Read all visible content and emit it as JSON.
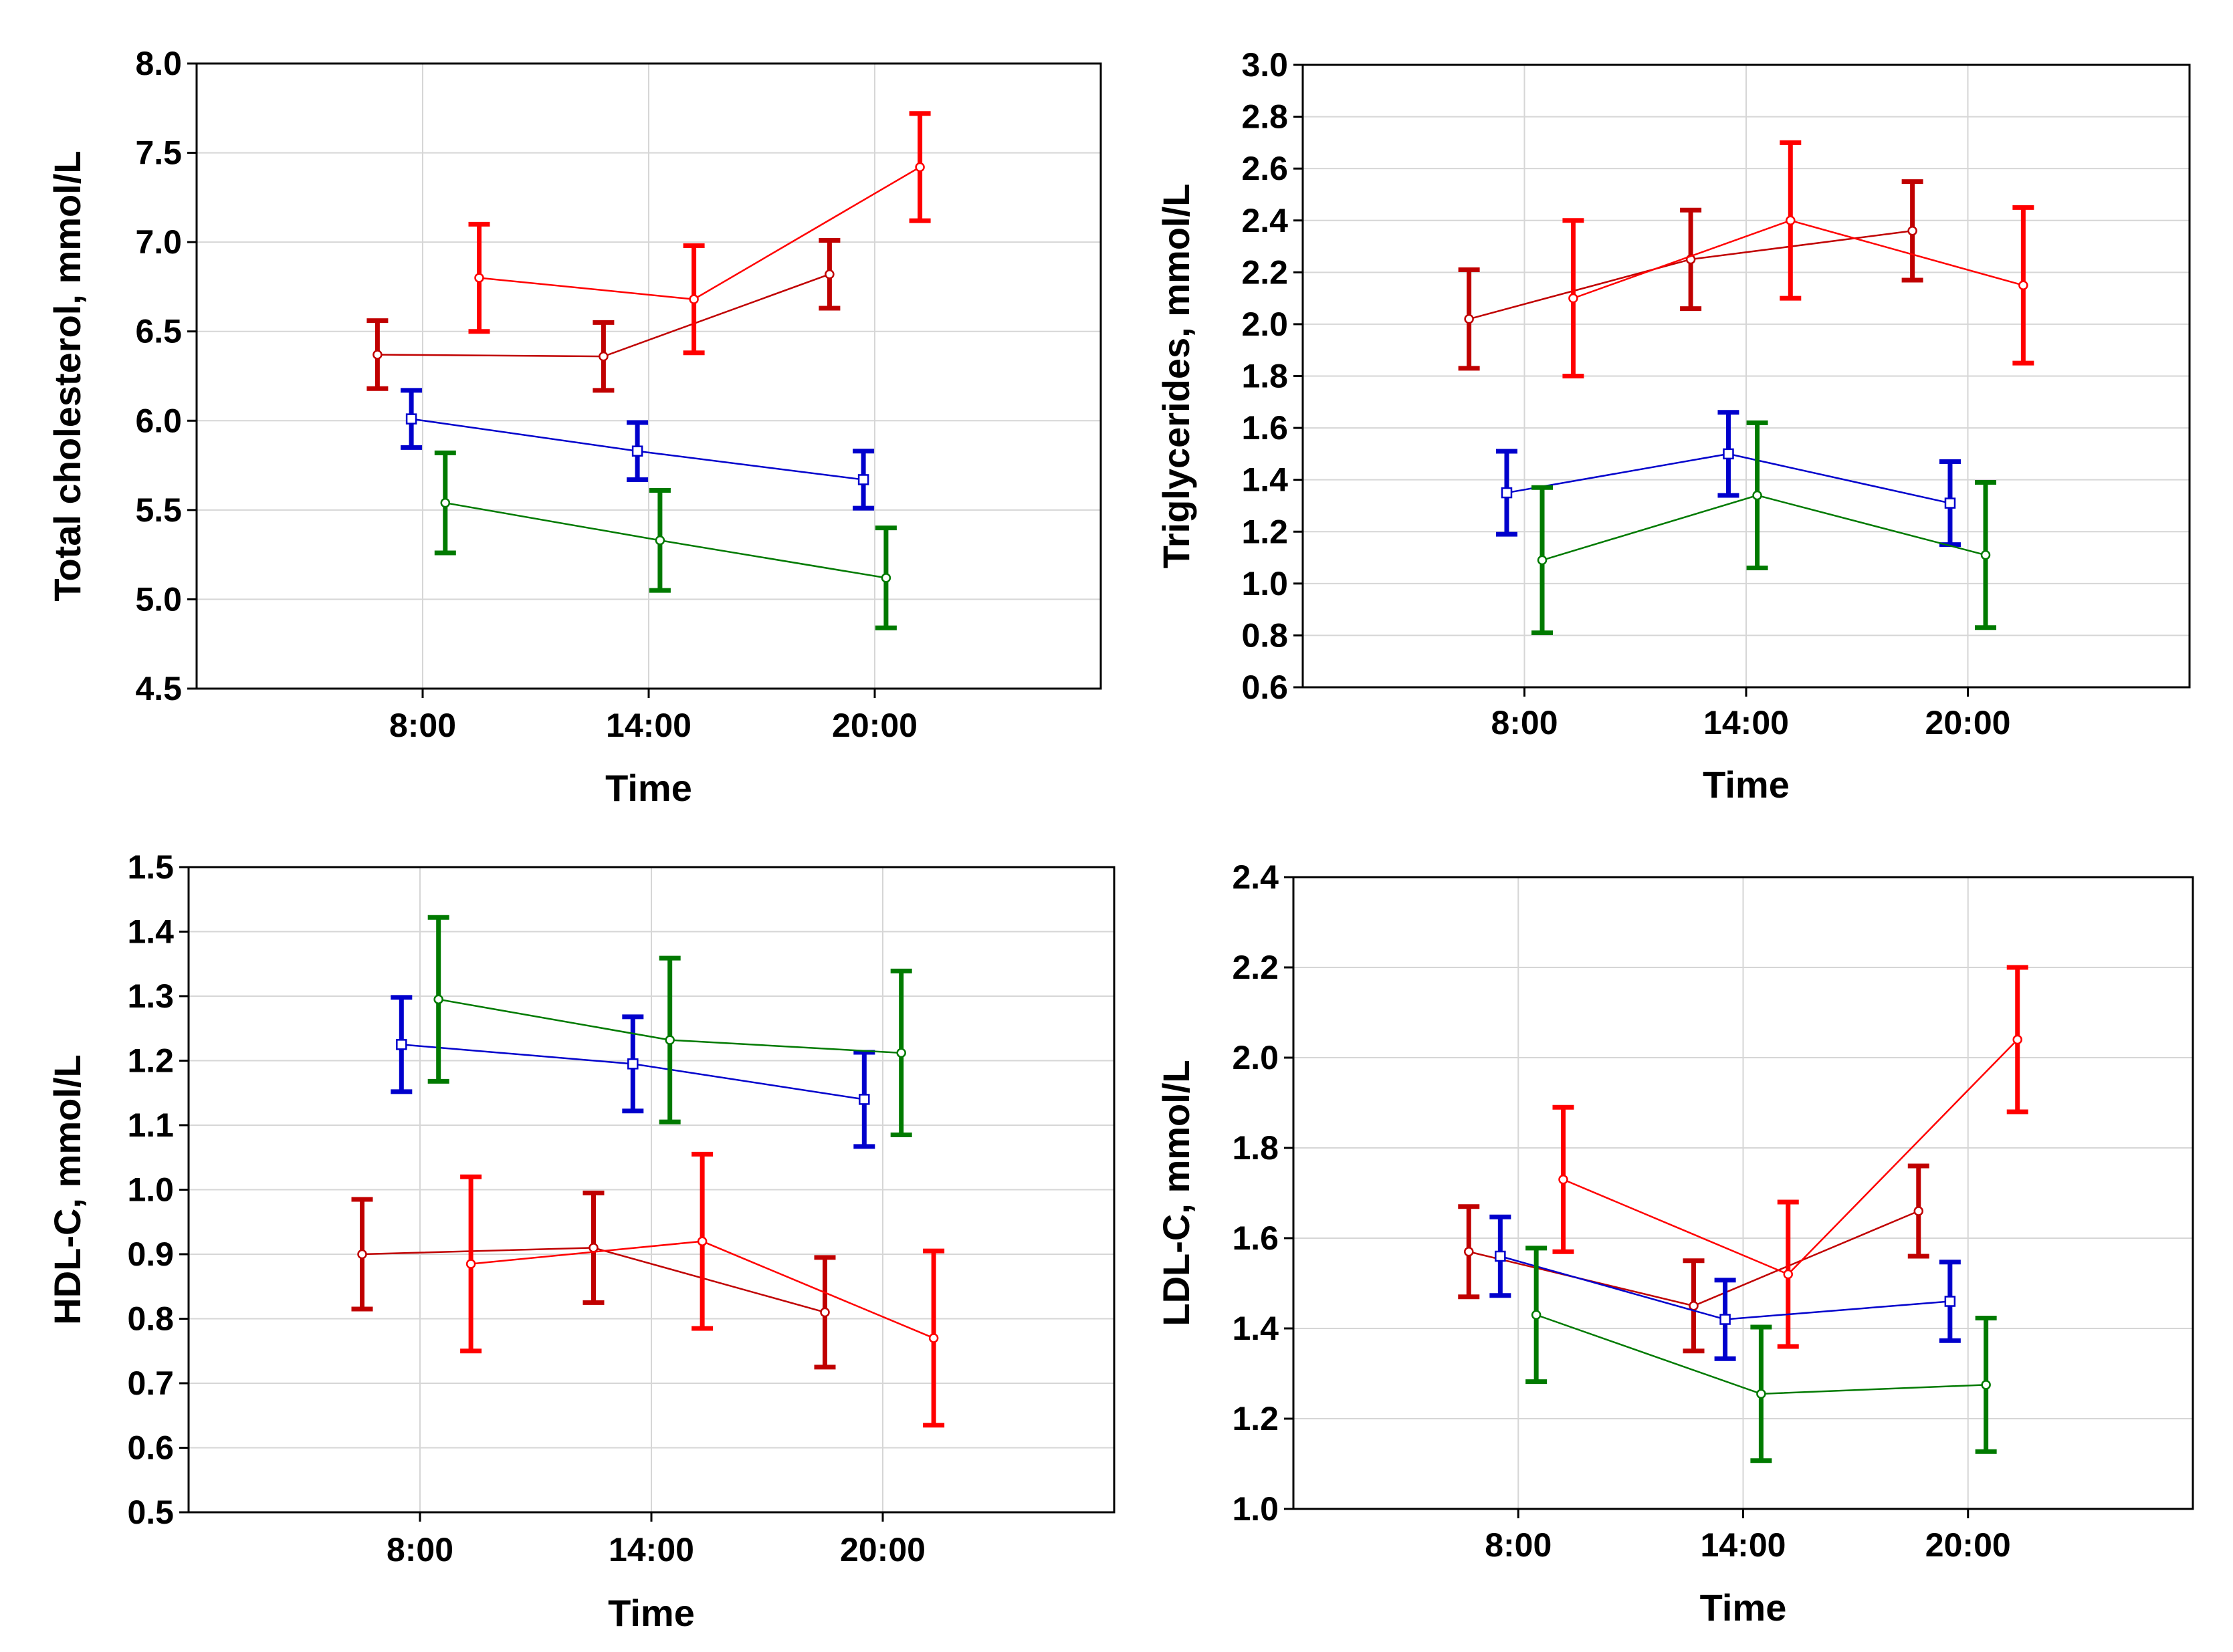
{
  "chart_data": [
    {
      "type": "line",
      "id": "total-cholesterol",
      "title": "",
      "xlabel": "Time",
      "ylabel": "Total cholesterol, mmol/L",
      "categories": [
        "8:00",
        "14:00",
        "20:00"
      ],
      "ylim": [
        4.5,
        8.0
      ],
      "yticks": [
        "4.5",
        "5.0",
        "5.5",
        "6.0",
        "6.5",
        "7.0",
        "7.5",
        "8.0"
      ],
      "grid": true,
      "series": [
        {
          "name": "series-darkred",
          "color": "#c00000",
          "marker": "circle",
          "x": [
            -0.2,
            0.8,
            1.8
          ],
          "values": [
            6.37,
            6.36,
            6.82
          ],
          "errors": [
            0.19,
            0.19,
            0.19
          ]
        },
        {
          "name": "series-red",
          "color": "#ff0000",
          "marker": "circle",
          "x": [
            0.25,
            1.2,
            2.2
          ],
          "values": [
            6.8,
            6.68,
            7.42
          ],
          "errors": [
            0.3,
            0.3,
            0.3
          ]
        },
        {
          "name": "series-blue",
          "color": "#0000cc",
          "marker": "square",
          "x": [
            -0.05,
            0.95,
            1.95
          ],
          "values": [
            6.01,
            5.83,
            5.67
          ],
          "errors": [
            0.16,
            0.16,
            0.16
          ]
        },
        {
          "name": "series-green",
          "color": "#007a00",
          "marker": "circle",
          "x": [
            0.1,
            1.05,
            2.05
          ],
          "values": [
            5.54,
            5.33,
            5.12
          ],
          "errors": [
            0.28,
            0.28,
            0.28
          ]
        }
      ]
    },
    {
      "type": "line",
      "id": "triglycerides",
      "title": "",
      "xlabel": "Time",
      "ylabel": "Triglycerides, mmol/L",
      "categories": [
        "8:00",
        "14:00",
        "20:00"
      ],
      "ylim": [
        0.6,
        3.0
      ],
      "yticks": [
        "0.6",
        "0.8",
        "1.0",
        "1.2",
        "1.4",
        "1.6",
        "1.8",
        "2.0",
        "2.2",
        "2.4",
        "2.6",
        "2.8",
        "3.0"
      ],
      "grid": true,
      "series": [
        {
          "name": "series-darkred",
          "color": "#c00000",
          "marker": "circle",
          "x": [
            -0.25,
            0.75,
            1.75
          ],
          "values": [
            2.02,
            2.25,
            2.36
          ],
          "errors": [
            0.19,
            0.19,
            0.19
          ]
        },
        {
          "name": "series-red",
          "color": "#ff0000",
          "marker": "circle",
          "x": [
            0.22,
            1.2,
            2.25
          ],
          "values": [
            2.1,
            2.4,
            2.15
          ],
          "errors": [
            0.3,
            0.3,
            0.3
          ]
        },
        {
          "name": "series-blue",
          "color": "#0000cc",
          "marker": "square",
          "x": [
            -0.08,
            0.92,
            1.92
          ],
          "values": [
            1.35,
            1.5,
            1.31
          ],
          "errors": [
            0.16,
            0.16,
            0.16
          ]
        },
        {
          "name": "series-green",
          "color": "#007a00",
          "marker": "circle",
          "x": [
            0.08,
            1.05,
            2.08
          ],
          "values": [
            1.09,
            1.34,
            1.11
          ],
          "errors": [
            0.28,
            0.28,
            0.28
          ]
        }
      ]
    },
    {
      "type": "line",
      "id": "hdl-c",
      "title": "",
      "xlabel": "Time",
      "ylabel": "HDL-C, mmol/L",
      "categories": [
        "8:00",
        "14:00",
        "20:00"
      ],
      "ylim": [
        0.5,
        1.5
      ],
      "yticks": [
        "0.5",
        "0.6",
        "0.7",
        "0.8",
        "0.9",
        "1.0",
        "1.1",
        "1.2",
        "1.3",
        "1.4",
        "1.5"
      ],
      "grid": true,
      "series": [
        {
          "name": "series-darkred",
          "color": "#c00000",
          "marker": "circle",
          "x": [
            -0.25,
            0.75,
            1.75
          ],
          "values": [
            0.9,
            0.91,
            0.81
          ],
          "errors": [
            0.085,
            0.085,
            0.085
          ]
        },
        {
          "name": "series-red",
          "color": "#ff0000",
          "marker": "circle",
          "x": [
            0.22,
            1.22,
            2.22
          ],
          "values": [
            0.885,
            0.92,
            0.77
          ],
          "errors": [
            0.135,
            0.135,
            0.135
          ]
        },
        {
          "name": "series-blue",
          "color": "#0000cc",
          "marker": "square",
          "x": [
            -0.08,
            0.92,
            1.92
          ],
          "values": [
            1.225,
            1.195,
            1.14
          ],
          "errors": [
            0.073,
            0.073,
            0.073
          ]
        },
        {
          "name": "series-green",
          "color": "#007a00",
          "marker": "circle",
          "x": [
            0.08,
            1.08,
            2.08
          ],
          "values": [
            1.295,
            1.232,
            1.212
          ],
          "errors": [
            0.127,
            0.127,
            0.127
          ]
        }
      ]
    },
    {
      "type": "line",
      "id": "ldl-c",
      "title": "",
      "xlabel": "Time",
      "ylabel": "LDL-C, mmol/L",
      "categories": [
        "8:00",
        "14:00",
        "20:00"
      ],
      "ylim": [
        1.0,
        2.4
      ],
      "yticks": [
        "1.0",
        "1.2",
        "1.4",
        "1.6",
        "1.8",
        "2.0",
        "2.2",
        "2.4"
      ],
      "grid": true,
      "series": [
        {
          "name": "series-darkred",
          "color": "#c00000",
          "marker": "circle",
          "x": [
            -0.22,
            0.78,
            1.78
          ],
          "values": [
            1.57,
            1.45,
            1.66
          ],
          "errors": [
            0.1,
            0.1,
            0.1
          ]
        },
        {
          "name": "series-red",
          "color": "#ff0000",
          "marker": "circle",
          "x": [
            0.2,
            1.2,
            2.22
          ],
          "values": [
            1.73,
            1.52,
            2.04
          ],
          "errors": [
            0.16,
            0.16,
            0.16
          ]
        },
        {
          "name": "series-blue",
          "color": "#0000cc",
          "marker": "square",
          "x": [
            -0.08,
            0.92,
            1.92
          ],
          "values": [
            1.56,
            1.42,
            1.46
          ],
          "errors": [
            0.087,
            0.087,
            0.087
          ]
        },
        {
          "name": "series-green",
          "color": "#007a00",
          "marker": "circle",
          "x": [
            0.08,
            1.08,
            2.08
          ],
          "values": [
            1.43,
            1.255,
            1.275
          ],
          "errors": [
            0.148,
            0.148,
            0.148
          ]
        }
      ]
    }
  ]
}
